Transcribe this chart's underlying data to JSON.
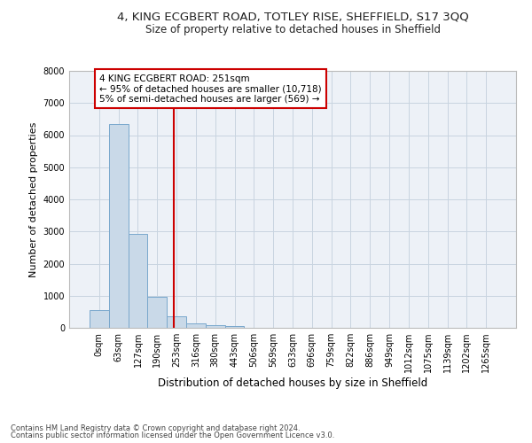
{
  "title1": "4, KING ECGBERT ROAD, TOTLEY RISE, SHEFFIELD, S17 3QQ",
  "title2": "Size of property relative to detached houses in Sheffield",
  "xlabel": "Distribution of detached houses by size in Sheffield",
  "ylabel": "Number of detached properties",
  "footnote1": "Contains HM Land Registry data © Crown copyright and database right 2024.",
  "footnote2": "Contains public sector information licensed under the Open Government Licence v3.0.",
  "bar_labels": [
    "0sqm",
    "63sqm",
    "127sqm",
    "190sqm",
    "253sqm",
    "316sqm",
    "380sqm",
    "443sqm",
    "506sqm",
    "569sqm",
    "633sqm",
    "696sqm",
    "759sqm",
    "822sqm",
    "886sqm",
    "949sqm",
    "1012sqm",
    "1075sqm",
    "1139sqm",
    "1202sqm",
    "1265sqm"
  ],
  "bar_heights": [
    560,
    6350,
    2920,
    970,
    370,
    150,
    80,
    55,
    0,
    0,
    0,
    0,
    0,
    0,
    0,
    0,
    0,
    0,
    0,
    0,
    0
  ],
  "bar_color": "#c9d9e8",
  "bar_edgecolor": "#7aa8cc",
  "annotation_text": "4 KING ECGBERT ROAD: 251sqm\n← 95% of detached houses are smaller (10,718)\n5% of semi-detached houses are larger (569) →",
  "vline_x": 3.85,
  "vline_color": "#cc0000",
  "annotation_box_color": "#ffffff",
  "annotation_box_edgecolor": "#cc0000",
  "ylim": [
    0,
    8000
  ],
  "yticks": [
    0,
    1000,
    2000,
    3000,
    4000,
    5000,
    6000,
    7000,
    8000
  ],
  "grid_color": "#c8d4e0",
  "bg_color": "#edf1f7",
  "title1_fontsize": 9.5,
  "title2_fontsize": 8.5,
  "annotation_fontsize": 7.5,
  "ylabel_fontsize": 8,
  "xlabel_fontsize": 8.5,
  "tick_fontsize": 7,
  "footnote_fontsize": 6
}
